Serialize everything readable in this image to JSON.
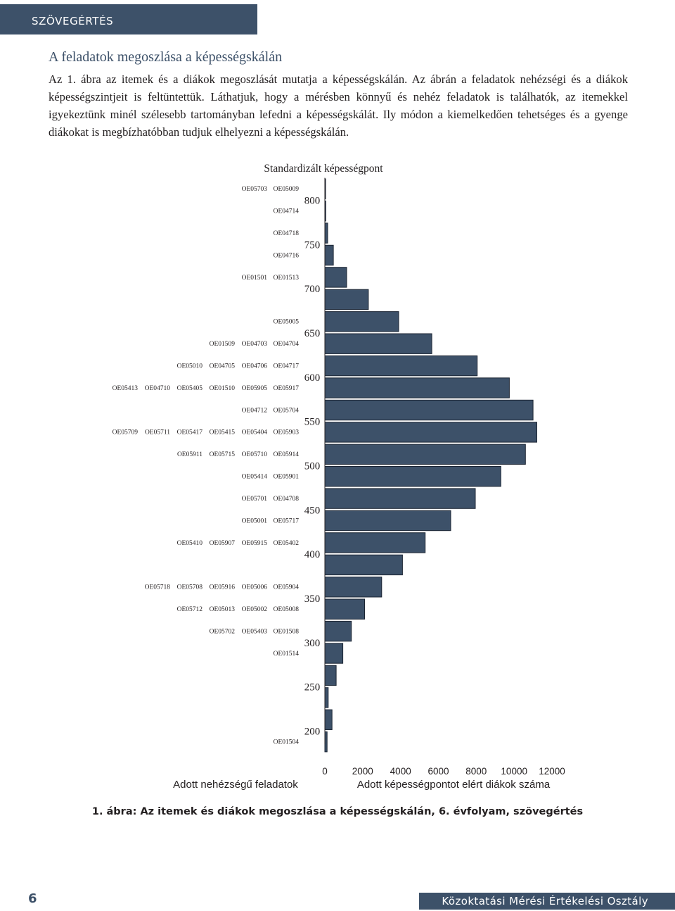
{
  "header": {
    "section": "SZÖVEGÉRTÉS"
  },
  "section_title": "A feladatok megoszlása a képességskálán",
  "body_text": "Az 1. ábra az itemek és a diákok megoszlását mutatja a képességskálán. Az ábrán a feladatok nehézségi és a diákok képességszintjeit is feltüntettük. Láthatjuk, hogy a mérésben könnyű és nehéz feladatok is találhatók, az itemekkel igyekeztünk minél szélesebb tartományban lefedni a képességskálát. Ily módon a kiemelkedően tehetséges és a gyenge diákokat is megbízhatóbban tudjuk elhelyezni a képességskálán.",
  "caption": "1. ábra: Az itemek és diákok megoszlása a képességskálán, 6. évfolyam, szövegértés",
  "footer": {
    "page_number": "6",
    "org": "Közoktatási Mérési Értékelési Osztály"
  },
  "colors": {
    "bar_fill": "#3d5169",
    "header": "#3d5169"
  },
  "chart_data": {
    "type": "bar",
    "orientation": "horizontal",
    "title": "Standardizált képességpont",
    "xlabel": "Adott képességpontot elért diákok száma",
    "left_label": "Adott nehézségű feladatok",
    "ylim": [
      185,
      825
    ],
    "xlim": [
      0,
      12000
    ],
    "x_ticks": [
      "0",
      "2000",
      "4000",
      "6000",
      "8000",
      "10000",
      "12000"
    ],
    "y_ticks": [
      "200",
      "250",
      "300",
      "350",
      "400",
      "450",
      "500",
      "550",
      "600",
      "650",
      "700",
      "750",
      "800"
    ],
    "bars": [
      {
        "y": 812.5,
        "value": 0
      },
      {
        "y": 787.5,
        "value": 50
      },
      {
        "y": 762.5,
        "value": 150
      },
      {
        "y": 737.5,
        "value": 450
      },
      {
        "y": 712.5,
        "value": 1150
      },
      {
        "y": 687.5,
        "value": 2300
      },
      {
        "y": 662.5,
        "value": 3900
      },
      {
        "y": 637.5,
        "value": 5650
      },
      {
        "y": 612.5,
        "value": 8050
      },
      {
        "y": 587.5,
        "value": 9750
      },
      {
        "y": 562.5,
        "value": 11000
      },
      {
        "y": 537.5,
        "value": 11200
      },
      {
        "y": 512.5,
        "value": 10600
      },
      {
        "y": 487.5,
        "value": 9300
      },
      {
        "y": 462.5,
        "value": 7950
      },
      {
        "y": 437.5,
        "value": 6650
      },
      {
        "y": 412.5,
        "value": 5300
      },
      {
        "y": 387.5,
        "value": 4100
      },
      {
        "y": 362.5,
        "value": 3000
      },
      {
        "y": 337.5,
        "value": 2100
      },
      {
        "y": 312.5,
        "value": 1400
      },
      {
        "y": 287.5,
        "value": 950
      },
      {
        "y": 262.5,
        "value": 600
      },
      {
        "y": 237.5,
        "value": 180
      },
      {
        "y": 212.5,
        "value": 380
      },
      {
        "y": 187.5,
        "value": 120
      }
    ],
    "items": [
      {
        "y": 813,
        "labels": [
          "OE05703",
          "OE05009"
        ]
      },
      {
        "y": 788,
        "labels": [
          "OE04714"
        ]
      },
      {
        "y": 763,
        "labels": [
          "OE04718"
        ]
      },
      {
        "y": 738,
        "labels": [
          "OE04716"
        ]
      },
      {
        "y": 713,
        "labels": [
          "OE01501",
          "OE01513"
        ]
      },
      {
        "y": 663,
        "labels": [
          "OE05005"
        ]
      },
      {
        "y": 638,
        "labels": [
          "OE01509",
          "OE04703",
          "OE04704"
        ]
      },
      {
        "y": 613,
        "labels": [
          "OE05010",
          "OE04705",
          "OE04706",
          "OE04717"
        ]
      },
      {
        "y": 588,
        "labels": [
          "OE05413",
          "OE04710",
          "OE05405",
          "OE01510",
          "OE05905",
          "OE05917"
        ]
      },
      {
        "y": 563,
        "labels": [
          "OE04712",
          "OE05704"
        ]
      },
      {
        "y": 538,
        "labels": [
          "OE05709",
          "OE05711",
          "OE05417",
          "OE05415",
          "OE05404",
          "OE05903"
        ]
      },
      {
        "y": 513,
        "labels": [
          "OE05911",
          "OE05715",
          "OE05710",
          "OE05914"
        ]
      },
      {
        "y": 488,
        "labels": [
          "OE05414",
          "OE05901"
        ]
      },
      {
        "y": 463,
        "labels": [
          "OE05701",
          "OE04708"
        ]
      },
      {
        "y": 438,
        "labels": [
          "OE05001",
          "OE05717"
        ]
      },
      {
        "y": 413,
        "labels": [
          "OE05410",
          "OE05907",
          "OE05915",
          "OE05402"
        ]
      },
      {
        "y": 363,
        "labels": [
          "OE05718",
          "OE05708",
          "OE05916",
          "OE05006",
          "OE05904"
        ]
      },
      {
        "y": 338,
        "labels": [
          "OE05712",
          "OE05013",
          "OE05002",
          "OE05008"
        ]
      },
      {
        "y": 313,
        "labels": [
          "OE05702",
          "OE05403",
          "OE01508"
        ]
      },
      {
        "y": 288,
        "labels": [
          "OE01514"
        ]
      },
      {
        "y": 188,
        "labels": [
          "OE01504"
        ]
      }
    ]
  }
}
